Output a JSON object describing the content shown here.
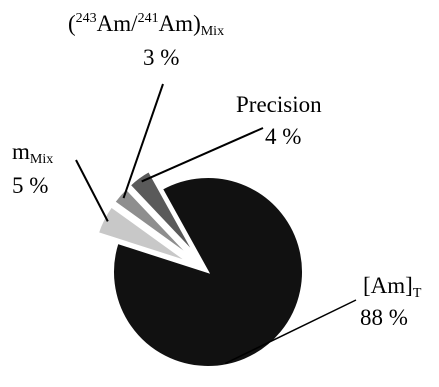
{
  "chart_data": {
    "type": "pie",
    "exploded": true,
    "slices": [
      {
        "label_base": "[Am]",
        "label_sub": "T",
        "value": 88,
        "value_text": "88 %",
        "color": "#111111"
      },
      {
        "label_base": "m",
        "label_sub": "Mix",
        "value": 5,
        "value_text": "5 %",
        "color": "#c8c8c8"
      },
      {
        "label_sup1": "243",
        "label_mid": "Am/",
        "label_sup2": "241",
        "label_mid2": "Am)",
        "label_open": "(",
        "label_sub": "Mix",
        "value": 3,
        "value_text": "3 %",
        "color": "#8e8e8e"
      },
      {
        "label_base": "Precision",
        "value": 4,
        "value_text": "4 %",
        "color": "#5a5a5a"
      }
    ]
  }
}
